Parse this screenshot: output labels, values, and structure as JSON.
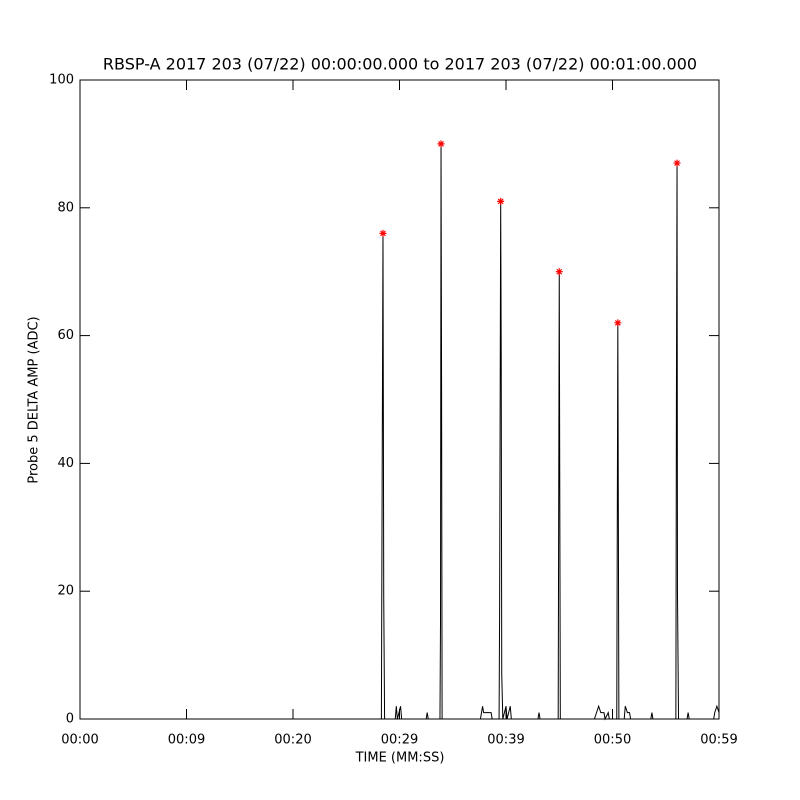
{
  "chart_data": {
    "type": "line",
    "title": "RBSP-A 2017 203 (07/22) 00:00:00.000 to 2017 203 (07/22) 00:01:00.000",
    "x_label": "TIME (MM:SS)",
    "y_label": "Probe 5 DELTA AMP (ADC)",
    "xlim": [
      0,
      60
    ],
    "xticks": [
      {
        "value": 0,
        "label": "00:00"
      },
      {
        "value": 10,
        "label": "00:09"
      },
      {
        "value": 20,
        "label": "00:20"
      },
      {
        "value": 30,
        "label": "00:29"
      },
      {
        "value": 40,
        "label": "00:39"
      },
      {
        "value": 50,
        "label": "00:50"
      },
      {
        "value": 60,
        "label": "00:59"
      }
    ],
    "ylim": [
      0,
      100
    ],
    "yticks": [
      0,
      20,
      40,
      60,
      80,
      100
    ],
    "series": [
      {
        "color": "#000000",
        "x": [
          0,
          28.3,
          28.38,
          28.45,
          28.52,
          28.6,
          29.6,
          29.7,
          29.8,
          30.1,
          30.2,
          32.5,
          32.6,
          32.7,
          33.8,
          33.85,
          33.9,
          33.95,
          34.0,
          37.6,
          37.7,
          37.8,
          37.9,
          38.6,
          38.7,
          39.35,
          39.4,
          39.5,
          39.55,
          39.6,
          39.7,
          40.0,
          40.1,
          40.4,
          40.5,
          43.0,
          43.1,
          43.2,
          44.9,
          44.95,
          45.0,
          45.1,
          48.3,
          48.5,
          48.7,
          48.9,
          49.2,
          49.3,
          49.6,
          49.7,
          50.4,
          50.45,
          50.5,
          50.6,
          51.1,
          51.2,
          51.4,
          51.6,
          51.7,
          53.6,
          53.7,
          53.8,
          55.95,
          56.0,
          56.06,
          56.1,
          56.2,
          57.0,
          57.1,
          57.2,
          59.5,
          59.6,
          59.8,
          60
        ],
        "values": [
          0,
          0,
          42,
          76,
          19,
          0,
          0,
          2,
          0,
          2,
          0,
          0,
          1,
          0,
          0,
          15,
          90,
          53,
          0,
          0,
          1,
          2,
          1,
          1,
          0,
          0,
          17,
          81,
          57,
          7,
          0,
          2,
          0,
          2,
          0,
          0,
          1,
          0,
          0,
          35,
          70,
          0,
          0,
          1,
          2,
          1,
          1,
          0,
          1,
          0,
          0,
          31,
          62,
          0,
          0,
          2,
          1,
          1,
          0,
          0,
          1,
          0,
          0,
          49,
          87,
          20,
          0,
          0,
          1,
          0,
          0,
          1,
          2,
          1
        ]
      },
      {
        "color": "#ff0000",
        "marker": "asterisk",
        "x": [
          28.45,
          33.9,
          39.5,
          45.0,
          50.5,
          56.06
        ],
        "values": [
          76,
          90,
          81,
          70,
          62,
          87
        ]
      }
    ]
  }
}
